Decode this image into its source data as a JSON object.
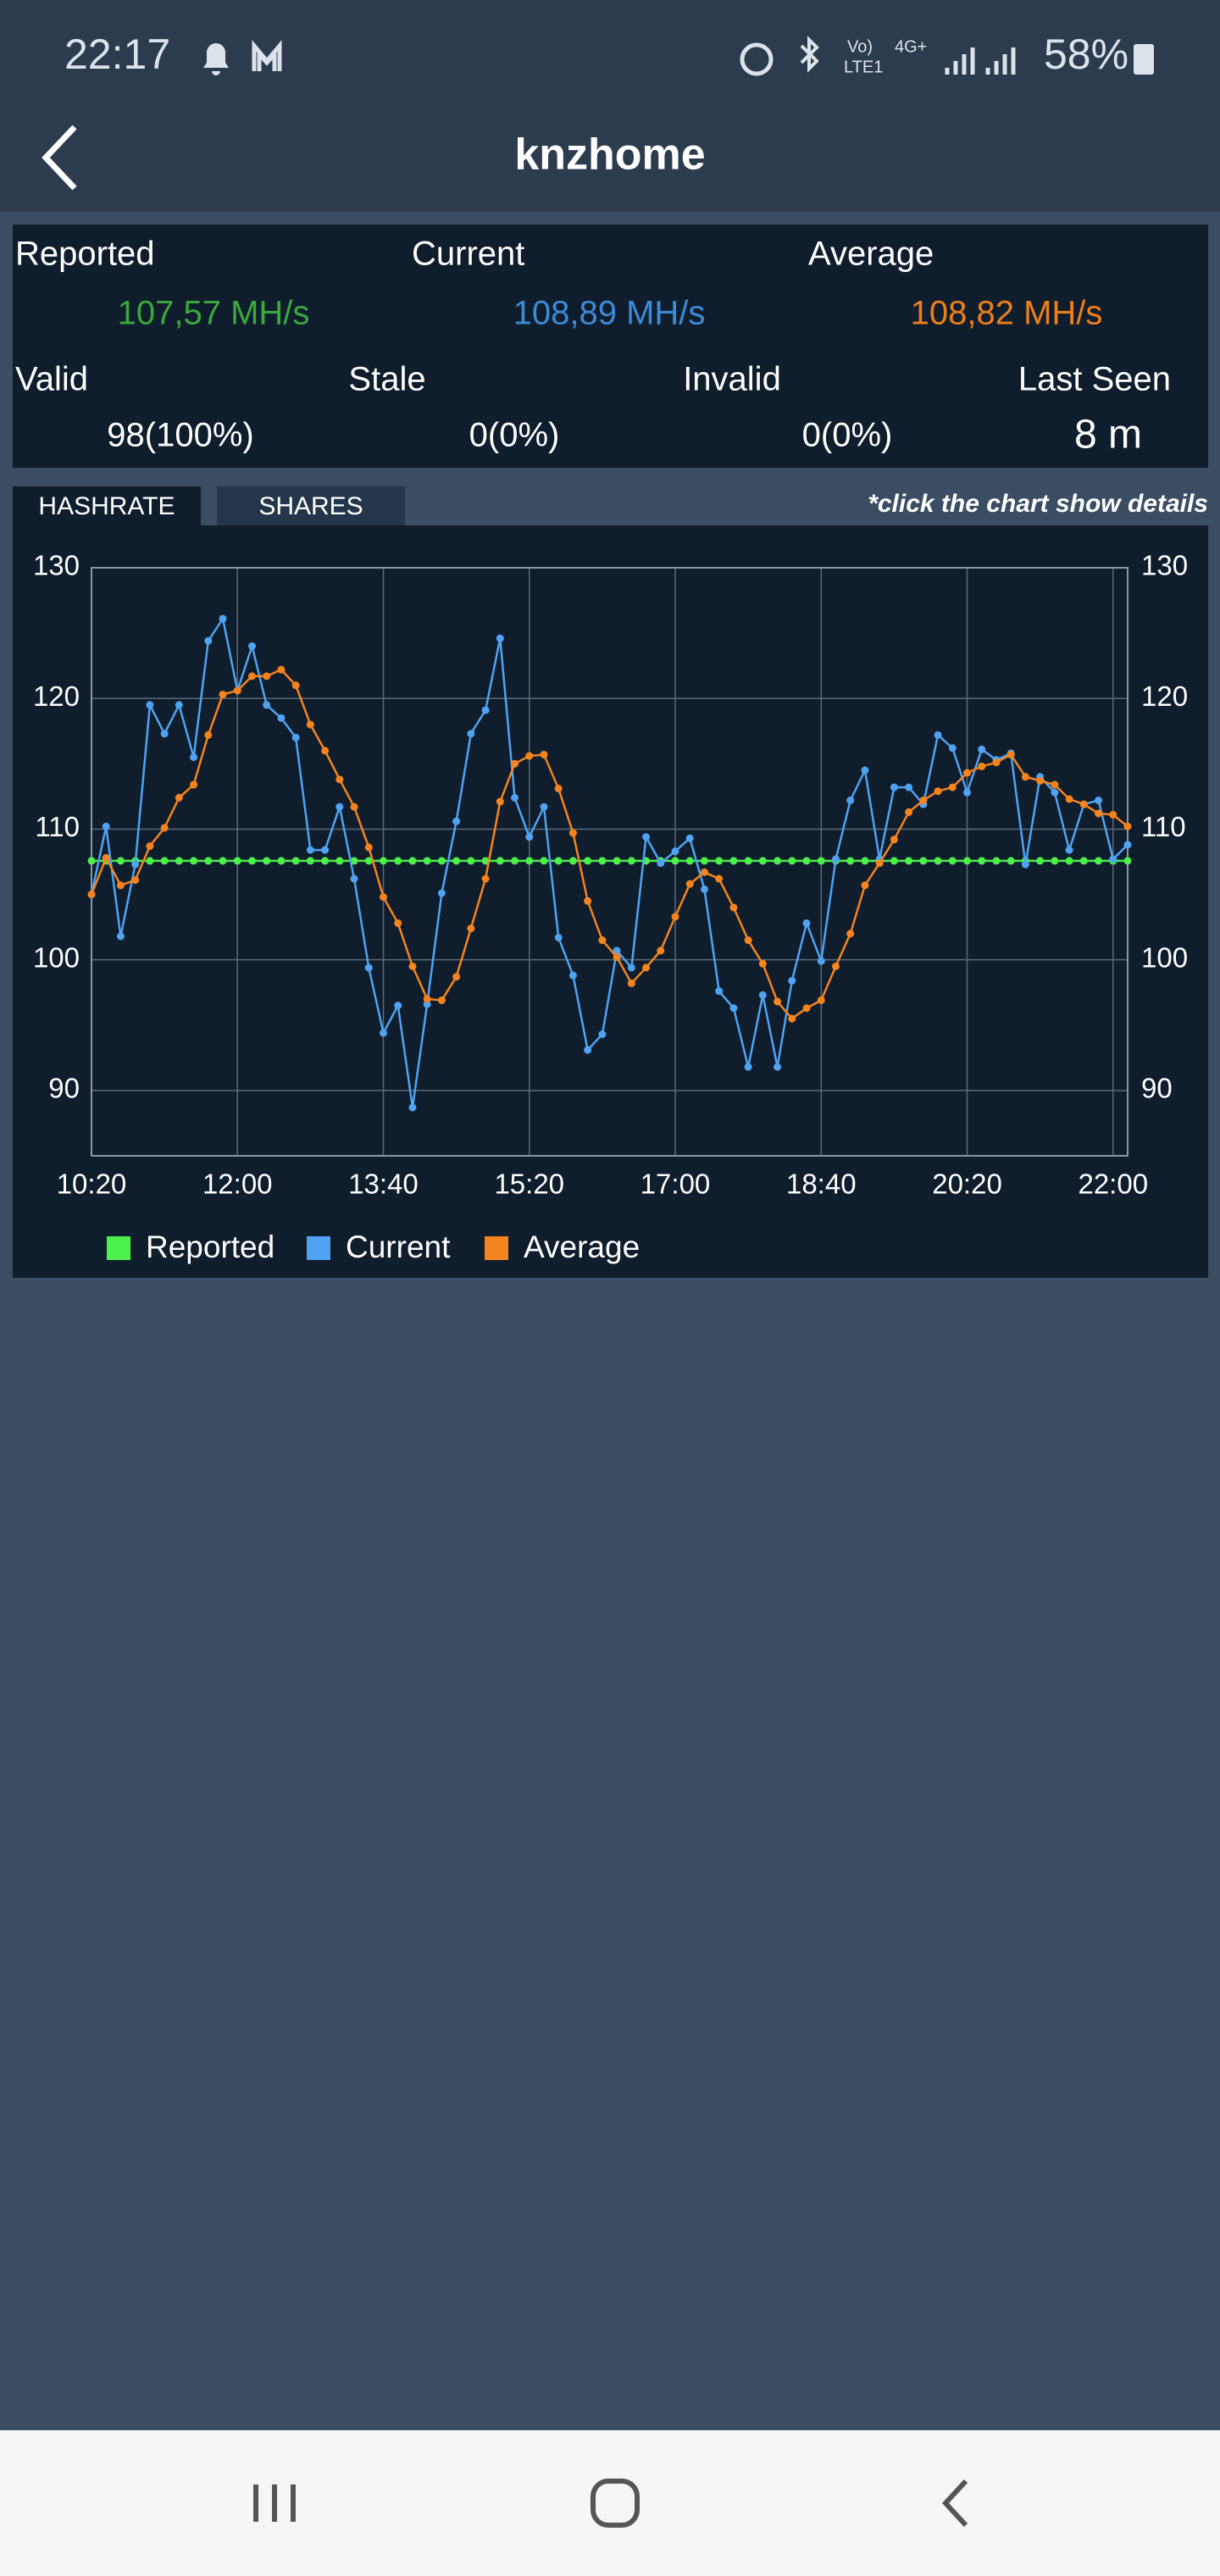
{
  "status_bar": {
    "time": "22:17",
    "indicators": [
      "Vo)",
      "LTE1",
      "4G+"
    ],
    "battery": "58%"
  },
  "header": {
    "title": "knzhome"
  },
  "stats": {
    "row1": [
      {
        "label": "Reported",
        "value": "107,57 MH/s"
      },
      {
        "label": "Current",
        "value": "108,89 MH/s"
      },
      {
        "label": "Average",
        "value": "108,82 MH/s"
      }
    ],
    "row2": [
      {
        "label": "Valid",
        "value": "98(100%)"
      },
      {
        "label": "Stale",
        "value": "0(0%)"
      },
      {
        "label": "Invalid",
        "value": "0(0%)"
      },
      {
        "label": "Last Seen",
        "value": "8 m"
      }
    ]
  },
  "tabs": [
    "HASHRATE",
    "SHARES"
  ],
  "hint": "*click the chart show details",
  "chart_data": {
    "type": "line",
    "x": [
      620,
      630,
      640,
      650,
      660,
      670,
      680,
      690,
      700,
      710,
      720,
      730,
      740,
      750,
      760,
      770,
      780,
      790,
      800,
      810,
      820,
      830,
      840,
      850,
      860,
      870,
      880,
      890,
      900,
      910,
      920,
      930,
      940,
      950,
      960,
      970,
      980,
      990,
      1000,
      1010,
      1020,
      1030,
      1040,
      1050,
      1060,
      1070,
      1080,
      1090,
      1100,
      1110,
      1120,
      1130,
      1140,
      1150,
      1160,
      1170,
      1180,
      1190,
      1200,
      1210,
      1220,
      1230,
      1240,
      1250,
      1260,
      1270,
      1280,
      1290,
      1300,
      1310,
      1320,
      1330
    ],
    "xlim": [
      620,
      1330
    ],
    "xticks": [
      {
        "value": 620,
        "label": "10:20"
      },
      {
        "value": 720,
        "label": "12:00"
      },
      {
        "value": 820,
        "label": "13:40"
      },
      {
        "value": 920,
        "label": "15:20"
      },
      {
        "value": 1020,
        "label": "17:00"
      },
      {
        "value": 1120,
        "label": "18:40"
      },
      {
        "value": 1220,
        "label": "20:20"
      },
      {
        "value": 1320,
        "label": "22:00"
      }
    ],
    "ylim": [
      85,
      130
    ],
    "yticks": [
      90,
      100,
      110,
      120,
      130
    ],
    "grid": true,
    "series": [
      {
        "name": "Reported",
        "color": "#4cf04c",
        "values": [
          107.57,
          107.57,
          107.57,
          107.57,
          107.57,
          107.57,
          107.57,
          107.57,
          107.57,
          107.57,
          107.57,
          107.57,
          107.57,
          107.57,
          107.57,
          107.57,
          107.57,
          107.57,
          107.57,
          107.57,
          107.57,
          107.57,
          107.57,
          107.57,
          107.57,
          107.57,
          107.57,
          107.57,
          107.57,
          107.57,
          107.57,
          107.57,
          107.57,
          107.57,
          107.57,
          107.57,
          107.57,
          107.57,
          107.57,
          107.57,
          107.57,
          107.57,
          107.57,
          107.57,
          107.57,
          107.57,
          107.57,
          107.57,
          107.57,
          107.57,
          107.57,
          107.57,
          107.57,
          107.57,
          107.57,
          107.57,
          107.57,
          107.57,
          107.57,
          107.57,
          107.57,
          107.57,
          107.57,
          107.57,
          107.57,
          107.57,
          107.57,
          107.57,
          107.57,
          107.57,
          107.57,
          107.57
        ]
      },
      {
        "name": "Current",
        "color": "#4fa3f2",
        "values": [
          105,
          110.2,
          101.8,
          107.3,
          119.5,
          117.3,
          119.5,
          115.5,
          124.4,
          126.1,
          120.6,
          124,
          119.5,
          118.5,
          117,
          108.4,
          108.4,
          111.7,
          106.2,
          99.4,
          94.4,
          96.5,
          88.7,
          96.6,
          105.1,
          110.6,
          117.3,
          119.1,
          124.6,
          112.4,
          109.4,
          111.7,
          101.7,
          98.8,
          93.1,
          94.3,
          100.7,
          99.4,
          109.4,
          107.4,
          108.3,
          109.3,
          105.4,
          97.6,
          96.3,
          91.8,
          97.3,
          91.8,
          98.4,
          102.8,
          99.9,
          107.7,
          112.2,
          114.5,
          107.7,
          113.2,
          113.2,
          111.9,
          117.2,
          116.2,
          112.8,
          116.1,
          115.3,
          115.8,
          107.3,
          114,
          112.8,
          108.4,
          111.9,
          112.2,
          107.7,
          108.8
        ]
      },
      {
        "name": "Average",
        "color": "#f5841f",
        "values": [
          105,
          107.8,
          105.7,
          106.1,
          108.7,
          110.1,
          112.4,
          113.4,
          117.2,
          120.3,
          120.6,
          121.7,
          121.7,
          122.2,
          121,
          118,
          116,
          113.8,
          111.7,
          108.6,
          104.8,
          102.8,
          99.5,
          97,
          96.9,
          98.7,
          102.4,
          106.2,
          112.1,
          115,
          115.6,
          115.7,
          113.1,
          109.7,
          104.5,
          101.5,
          100.2,
          98.2,
          99.4,
          100.7,
          103.3,
          105.8,
          106.7,
          106.2,
          104,
          101.5,
          99.7,
          96.8,
          95.5,
          96.3,
          96.9,
          99.5,
          102,
          105.7,
          107.4,
          109.2,
          111.3,
          112.2,
          112.9,
          113.2,
          114.3,
          114.8,
          115.1,
          115.7,
          114,
          113.7,
          113.4,
          112.3,
          111.9,
          111.2,
          111.1,
          110.2
        ]
      }
    ]
  }
}
